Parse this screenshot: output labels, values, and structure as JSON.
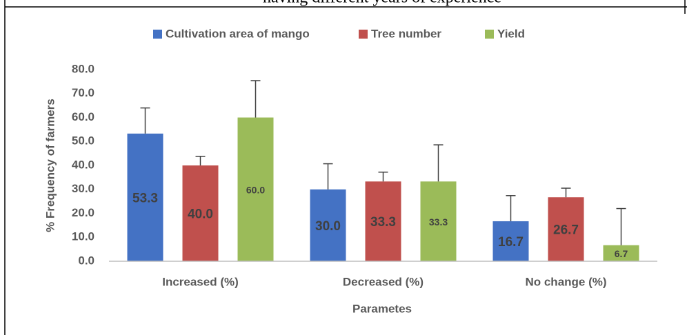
{
  "chart_data": {
    "type": "bar",
    "title": "having different years of experience",
    "x_label": "Parametes",
    "y_label": "% Frequency of farmers",
    "categories": [
      "Increased (%)",
      "Decreased (%)",
      "No change (%)"
    ],
    "series": [
      {
        "name": "Cultivation area of mango",
        "color": "#4472c4",
        "values": [
          53.3,
          30.0,
          16.7
        ],
        "value_labels": [
          "53.3",
          "30.0",
          "16.7"
        ],
        "errors": [
          10.7,
          10.7,
          10.7
        ]
      },
      {
        "name": "Tree number",
        "color": "#c0504d",
        "values": [
          40.0,
          33.3,
          26.7
        ],
        "value_labels": [
          "40.0",
          "33.3",
          "26.7"
        ],
        "errors": [
          3.8,
          3.9,
          3.8
        ]
      },
      {
        "name": "Yield",
        "color": "#9bbb59",
        "values": [
          60.0,
          33.3,
          6.7
        ],
        "value_labels": [
          "60.0",
          "33.3",
          "6.7"
        ],
        "errors": [
          15.4,
          15.3,
          15.3
        ]
      }
    ],
    "ylim": [
      0,
      80
    ],
    "yticks": [
      {
        "value": 0,
        "label": "0.0"
      },
      {
        "value": 10,
        "label": "10.0"
      },
      {
        "value": 20,
        "label": "20.0"
      },
      {
        "value": 30,
        "label": "30.0"
      },
      {
        "value": 40,
        "label": "40.0"
      },
      {
        "value": 50,
        "label": "50.0"
      },
      {
        "value": 60,
        "label": "60.0"
      },
      {
        "value": 70,
        "label": "70.0"
      },
      {
        "value": 80,
        "label": "80.0"
      }
    ],
    "legend": "top",
    "grid": false
  }
}
